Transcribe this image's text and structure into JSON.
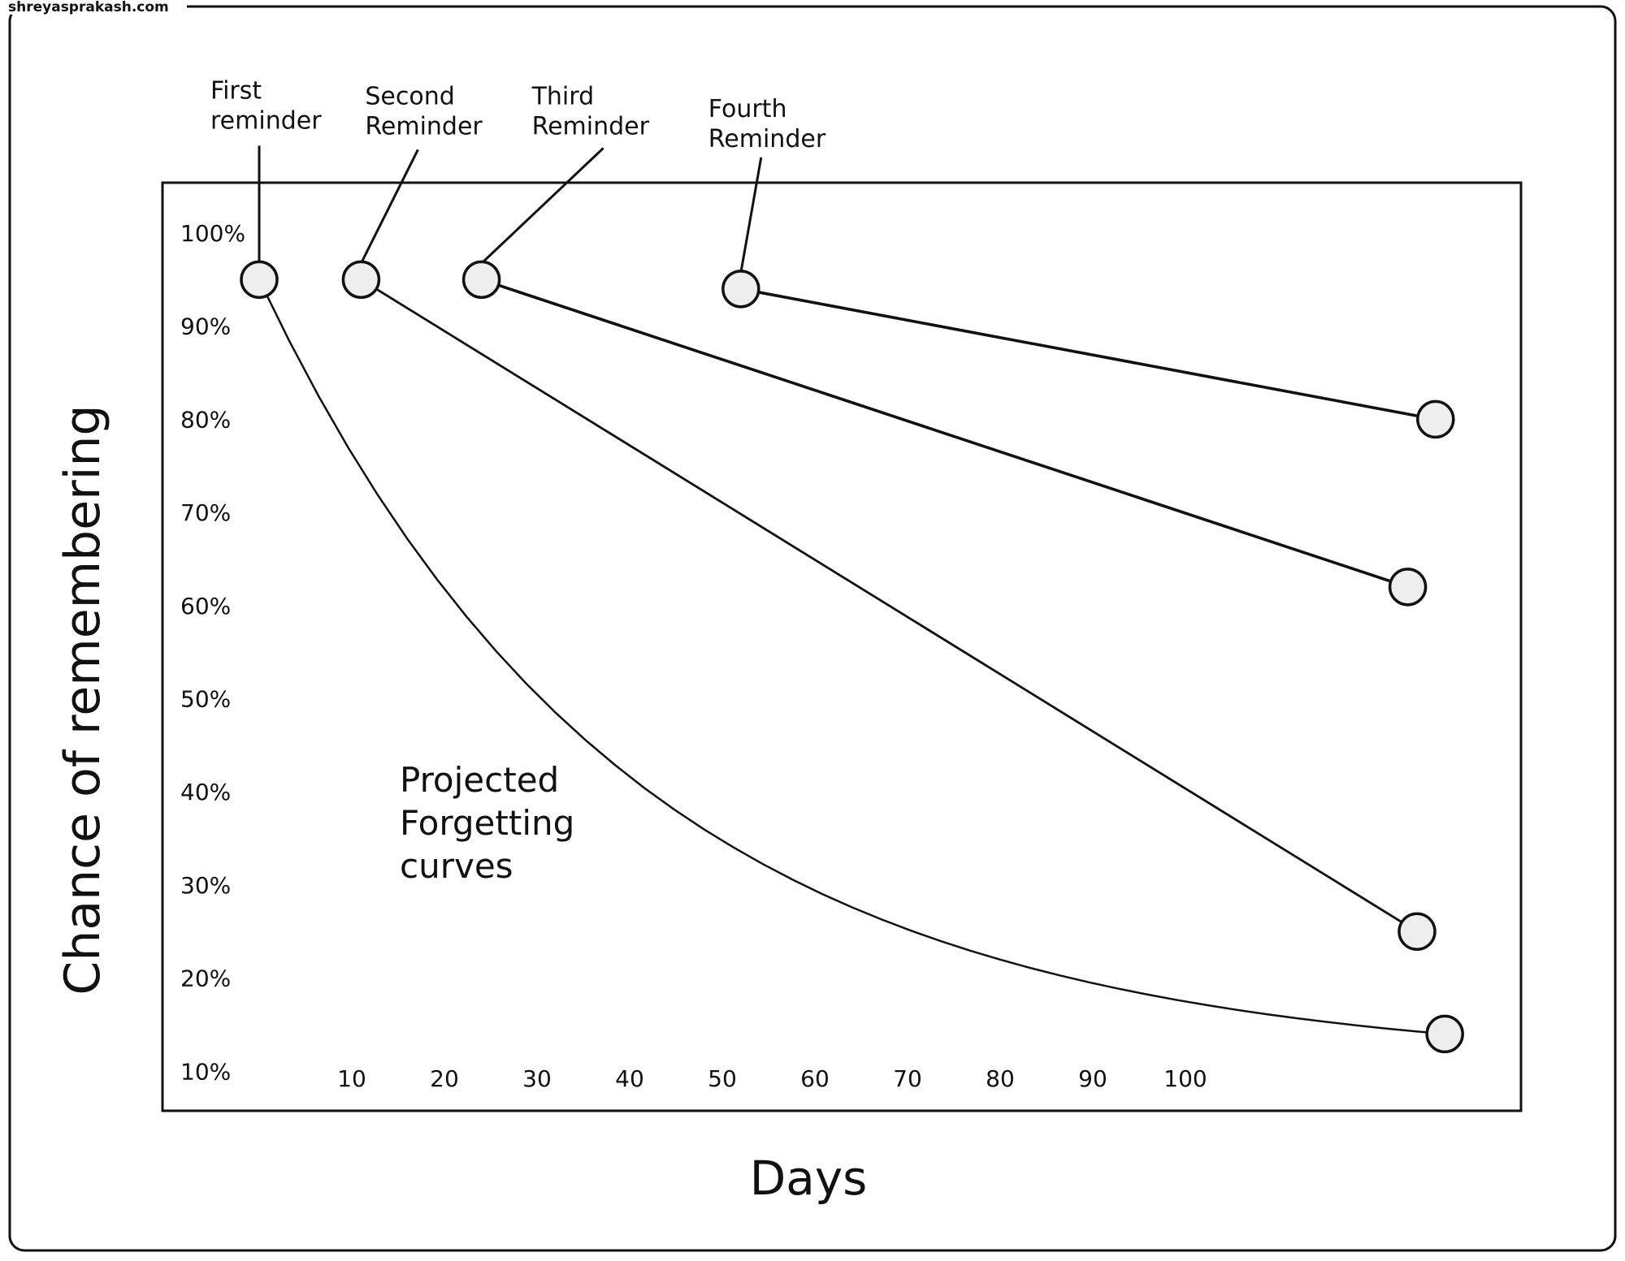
{
  "watermark": "shreyasprakash.com",
  "chart_data": {
    "type": "line",
    "title": "",
    "annotation": "Projected\nForgetting\ncurves",
    "xlabel": "Days",
    "ylabel": "Chance of remembering",
    "x_tick_labels": [
      "10",
      "20",
      "30",
      "40",
      "50",
      "60",
      "70",
      "80",
      "90",
      "100"
    ],
    "y_tick_labels": [
      "100%",
      "90%",
      "80%",
      "70%",
      "60%",
      "50%",
      "40%",
      "30%",
      "20%",
      "10%"
    ],
    "series": [
      {
        "name": "First reminder",
        "points": [
          [
            0,
            95
          ],
          [
            128,
            14
          ]
        ]
      },
      {
        "name": "Second Reminder",
        "points": [
          [
            11,
            95
          ],
          [
            125,
            25
          ]
        ]
      },
      {
        "name": "Third Reminder",
        "points": [
          [
            24,
            95
          ],
          [
            124,
            62
          ]
        ]
      },
      {
        "name": "Fourth Reminder",
        "points": [
          [
            52,
            94
          ],
          [
            127,
            80
          ]
        ]
      }
    ],
    "grid": false
  }
}
